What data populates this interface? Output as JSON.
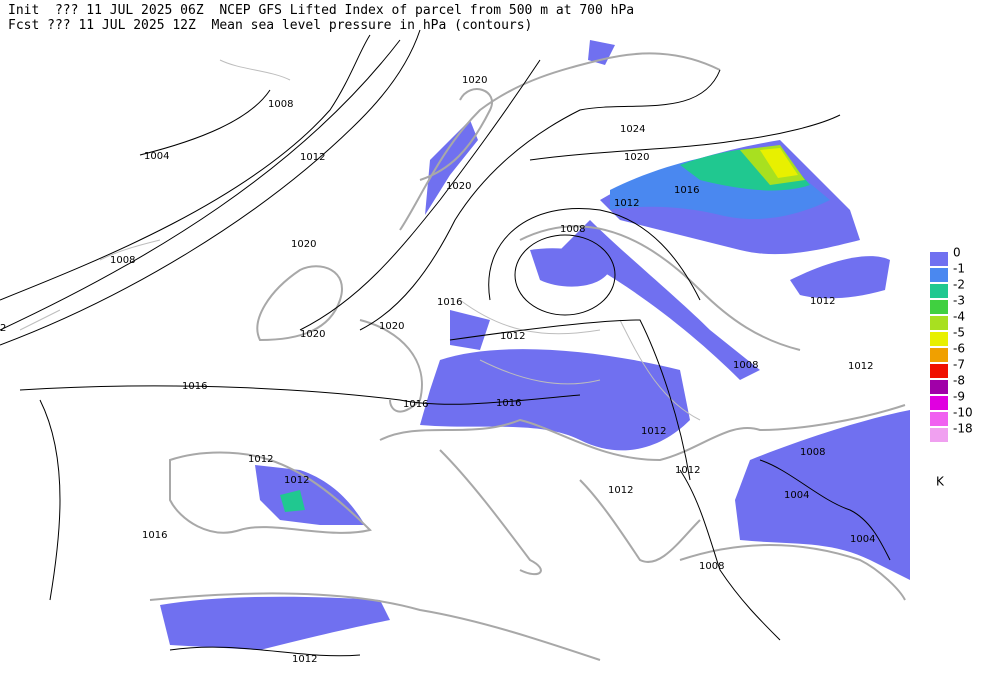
{
  "header": {
    "lines": [
      "Init  ??? 11 JUL 2025 06Z  NCEP GFS Lifted Index of parcel from 500 m at 700 hPa",
      "Fcst ??? 11 JUL 2025 12Z  Mean sea level pressure in hPa (contours)"
    ]
  },
  "contour_labels": [
    "1004",
    "1008",
    "1012",
    "1008",
    "1020",
    "1020",
    "1020",
    "1016",
    "1016",
    "1016",
    "1012",
    "1016",
    "1020",
    "1020",
    "1024",
    "1020",
    "1016",
    "1012",
    "1008",
    "1012",
    "1008",
    "1012",
    "1012",
    "1012",
    "1012",
    "1008",
    "1004",
    "1004",
    "1008",
    "1012",
    "1012",
    "1016",
    "1012",
    "2"
  ],
  "legend": {
    "unit": "K",
    "entries": [
      {
        "label": "0",
        "color": "#7070f0"
      },
      {
        "label": "-1",
        "color": "#4a88f0"
      },
      {
        "label": "-2",
        "color": "#20c890"
      },
      {
        "label": "-3",
        "color": "#40d040"
      },
      {
        "label": "-4",
        "color": "#a8e020"
      },
      {
        "label": "-5",
        "color": "#e8f000"
      },
      {
        "label": "-6",
        "color": "#f0a000"
      },
      {
        "label": "-7",
        "color": "#f01000"
      },
      {
        "label": "-8",
        "color": "#a000a8"
      },
      {
        "label": "-9",
        "color": "#e000e0"
      },
      {
        "label": "-10",
        "color": "#f060f0"
      },
      {
        "label": "-18",
        "color": "#f0a0f0"
      }
    ]
  }
}
